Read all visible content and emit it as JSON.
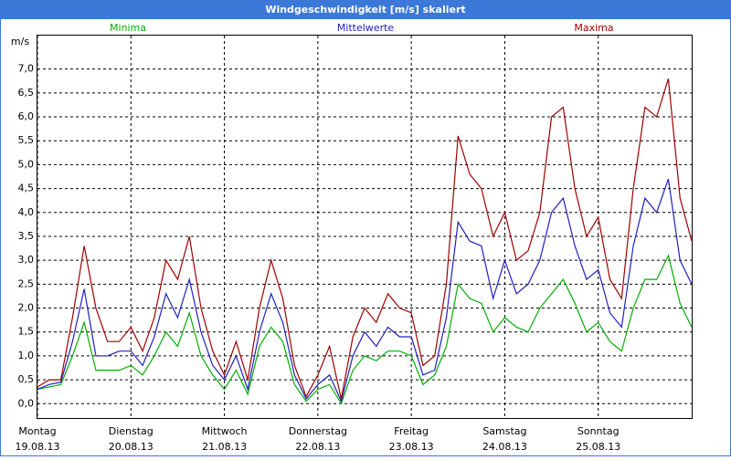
{
  "window_title": "Windgeschwindigkeit [m/s] skaliert",
  "chart_data": {
    "type": "line",
    "y_unit": "m/s",
    "x": [
      0,
      0.125,
      0.25,
      0.375,
      0.5,
      0.625,
      0.75,
      0.875,
      1,
      1.125,
      1.25,
      1.375,
      1.5,
      1.625,
      1.75,
      1.875,
      2,
      2.125,
      2.25,
      2.375,
      2.5,
      2.625,
      2.75,
      2.875,
      3,
      3.125,
      3.25,
      3.375,
      3.5,
      3.625,
      3.75,
      3.875,
      4,
      4.125,
      4.25,
      4.375,
      4.5,
      4.625,
      4.75,
      4.875,
      5,
      5.125,
      5.25,
      5.375,
      5.5,
      5.625,
      5.75,
      5.875,
      6,
      6.125,
      6.25,
      6.375,
      6.5,
      6.625,
      6.75,
      6.875,
      7
    ],
    "xlim": [
      0,
      7
    ],
    "xticks": [
      {
        "value": 0,
        "label": "Montag"
      },
      {
        "value": 1,
        "label": "Dienstag"
      },
      {
        "value": 2,
        "label": "Mittwoch"
      },
      {
        "value": 3,
        "label": "Donnerstag"
      },
      {
        "value": 4,
        "label": "Freitag"
      },
      {
        "value": 5,
        "label": "Samstag"
      },
      {
        "value": 6,
        "label": "Sonntag"
      }
    ],
    "xtick_dates": [
      "19.08.13",
      "20.08.13",
      "21.08.13",
      "22.08.13",
      "23.08.13",
      "24.08.13",
      "25.08.13"
    ],
    "ylim": [
      -0.3,
      7.7
    ],
    "yticks": [
      {
        "value": 0,
        "label": "0,0"
      },
      {
        "value": 0.5,
        "label": "0,5"
      },
      {
        "value": 1,
        "label": "1,0"
      },
      {
        "value": 1.5,
        "label": "1,5"
      },
      {
        "value": 2,
        "label": "2,0"
      },
      {
        "value": 2.5,
        "label": "2,5"
      },
      {
        "value": 3,
        "label": "3,0"
      },
      {
        "value": 3.5,
        "label": "3,5"
      },
      {
        "value": 4,
        "label": "4,0"
      },
      {
        "value": 4.5,
        "label": "4,5"
      },
      {
        "value": 5,
        "label": "5,0"
      },
      {
        "value": 5.5,
        "label": "5,5"
      },
      {
        "value": 6,
        "label": "6,0"
      },
      {
        "value": 6.5,
        "label": "6,5"
      },
      {
        "value": 7,
        "label": "7,0"
      }
    ],
    "grid": true,
    "series": [
      {
        "name": "Minima",
        "color": "#00b000",
        "values": [
          0.3,
          0.35,
          0.4,
          1.0,
          1.7,
          0.7,
          0.7,
          0.7,
          0.8,
          0.6,
          1.0,
          1.5,
          1.2,
          1.9,
          1.0,
          0.6,
          0.3,
          0.7,
          0.2,
          1.2,
          1.6,
          1.3,
          0.4,
          0.05,
          0.3,
          0.4,
          0,
          0.7,
          1.0,
          0.9,
          1.1,
          1.1,
          1.0,
          0.4,
          0.6,
          1.2,
          2.5,
          2.2,
          2.1,
          1.5,
          1.8,
          1.6,
          1.5,
          2.0,
          2.3,
          2.6,
          2.1,
          1.5,
          1.7,
          1.3,
          1.1,
          2.0,
          2.6,
          2.6,
          3.1,
          2.1,
          1.6
        ]
      },
      {
        "name": "Mittelwerte",
        "color": "#2020c0",
        "values": [
          0.3,
          0.4,
          0.45,
          1.3,
          2.4,
          1.0,
          1.0,
          1.1,
          1.1,
          0.8,
          1.4,
          2.3,
          1.8,
          2.6,
          1.5,
          0.8,
          0.5,
          1.0,
          0.3,
          1.5,
          2.3,
          1.7,
          0.6,
          0.1,
          0.4,
          0.6,
          0.05,
          1.0,
          1.5,
          1.2,
          1.6,
          1.4,
          1.4,
          0.6,
          0.7,
          1.8,
          3.8,
          3.4,
          3.3,
          2.2,
          3.0,
          2.3,
          2.5,
          3.0,
          4.0,
          4.3,
          3.3,
          2.6,
          2.8,
          1.9,
          1.6,
          3.3,
          4.3,
          4.0,
          4.7,
          3.0,
          2.5
        ]
      },
      {
        "name": "Maxima",
        "color": "#a00000",
        "values": [
          0.35,
          0.5,
          0.5,
          1.8,
          3.3,
          2.0,
          1.3,
          1.3,
          1.6,
          1.1,
          1.8,
          3.0,
          2.6,
          3.5,
          2.0,
          1.1,
          0.6,
          1.3,
          0.5,
          2.0,
          3.0,
          2.2,
          0.8,
          0.15,
          0.6,
          1.2,
          0.1,
          1.4,
          2.0,
          1.7,
          2.3,
          2.0,
          1.9,
          0.8,
          1.0,
          2.5,
          5.6,
          4.8,
          4.5,
          3.5,
          4.0,
          3.0,
          3.2,
          4.0,
          6.0,
          6.2,
          4.5,
          3.5,
          3.9,
          2.6,
          2.2,
          4.5,
          6.2,
          6.0,
          6.8,
          4.3,
          3.4
        ]
      }
    ]
  }
}
